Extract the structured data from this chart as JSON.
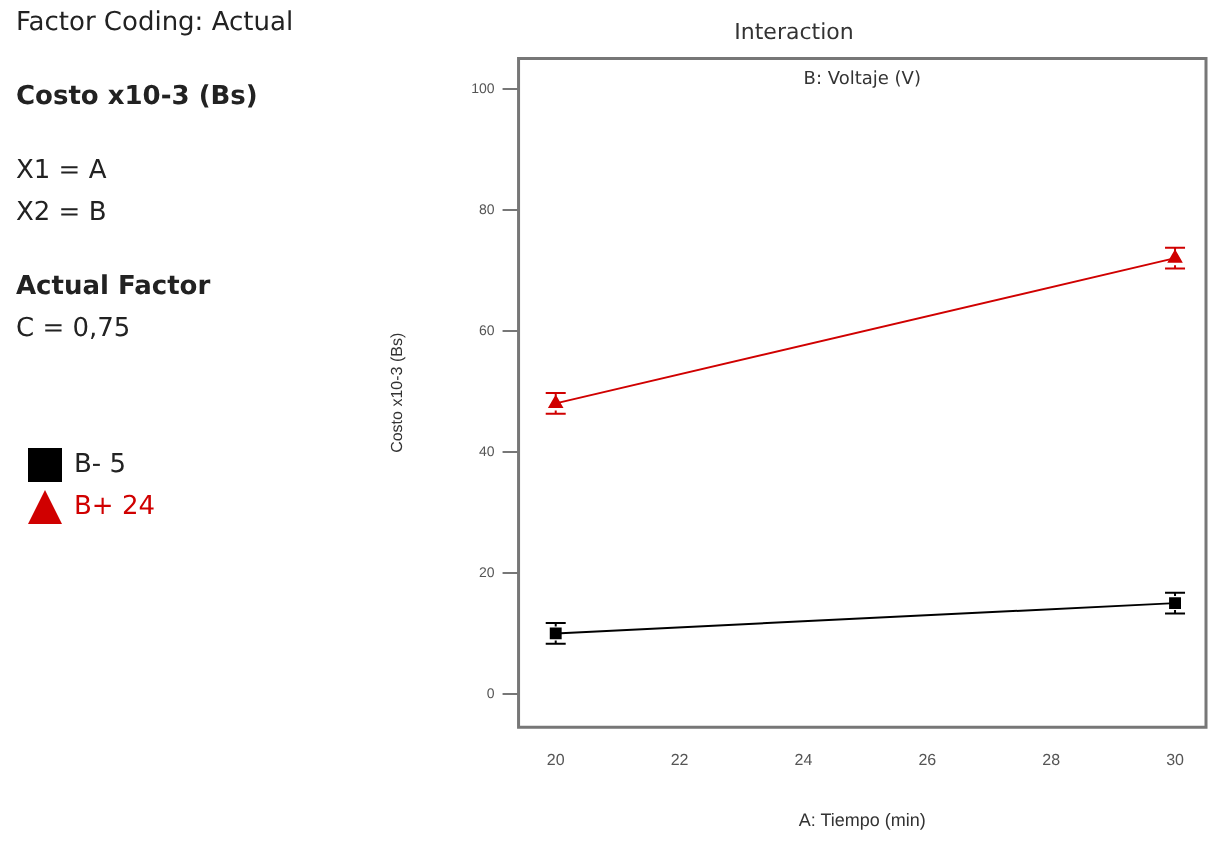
{
  "chart_data": {
    "type": "line",
    "title": "Interaction",
    "subtitle": "B: Voltaje (V)",
    "xlabel": "A: Tiempo (min)",
    "ylabel": "Costo x10-3 (Bs)",
    "annotations": [
      "Factor Coding: Actual",
      "Costo x10-3 (Bs)",
      "X1 = A",
      "X2 = B",
      "Actual Factor",
      "C = 0,75"
    ],
    "x": [
      20,
      30
    ],
    "series": [
      {
        "name": "B- 5",
        "color": "#000000",
        "marker": "square",
        "values": [
          10,
          15
        ],
        "errors": [
          1.7,
          1.7
        ]
      },
      {
        "name": "B+ 24",
        "color": "#d00000",
        "marker": "triangle",
        "values": [
          48,
          72
        ],
        "errors": [
          1.7,
          1.7
        ]
      }
    ],
    "xlim": [
      19.4,
      30.5
    ],
    "xticks": [
      20,
      22,
      24,
      26,
      28,
      30
    ],
    "ylim": [
      -5.5,
      105
    ],
    "yticks": [
      0,
      20,
      40,
      60,
      80,
      100
    ],
    "grid": false,
    "legend": "left"
  }
}
